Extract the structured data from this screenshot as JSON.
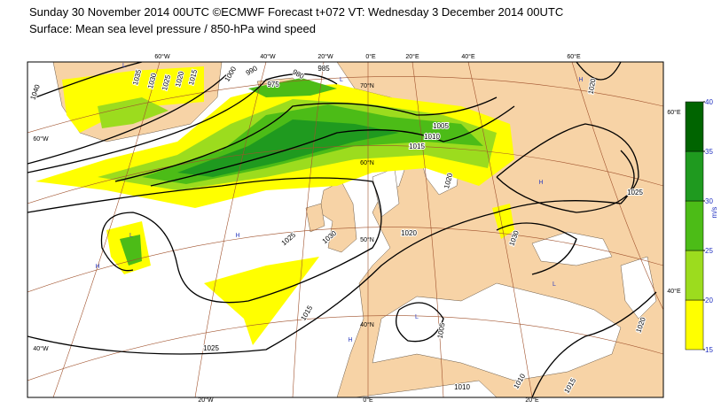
{
  "header": {
    "line1": "Sunday 30 November 2014 00UTC ©ECMWF Forecast t+072 VT: Wednesday 3 December 2014 00UTC",
    "line2": "Surface: Mean sea level pressure / 850-hPa wind speed"
  },
  "map": {
    "graticule_labels": [
      "60°W",
      "40°W",
      "20°W",
      "0°E",
      "20°E",
      "40°E",
      "60°E",
      "60°W",
      "40°W",
      "60°E",
      "40°E",
      "20°W",
      "0°E",
      "20°E",
      "70°N",
      "60°N",
      "50°N",
      "40°N"
    ],
    "isobar_labels": [
      "1040",
      "1035",
      "1030",
      "1025",
      "1020",
      "1015",
      "1000",
      "990",
      "975",
      "980",
      "985",
      "1005",
      "1010",
      "1015",
      "1020",
      "1020",
      "1025",
      "1030",
      "1025",
      "1020",
      "1015",
      "1025",
      "1005",
      "1010",
      "1015",
      "1020",
      "1030",
      "1010"
    ],
    "centres": [
      "L",
      "L",
      "H",
      "H",
      "L",
      "L",
      "H",
      "H",
      "L",
      "H"
    ]
  },
  "colorbar": {
    "unit": "m/s",
    "ticks": [
      15,
      20,
      25,
      30,
      35,
      40
    ],
    "colors": [
      "#ffff00",
      "#9cdc1e",
      "#4cbc17",
      "#1f9a1f",
      "#006400"
    ]
  }
}
